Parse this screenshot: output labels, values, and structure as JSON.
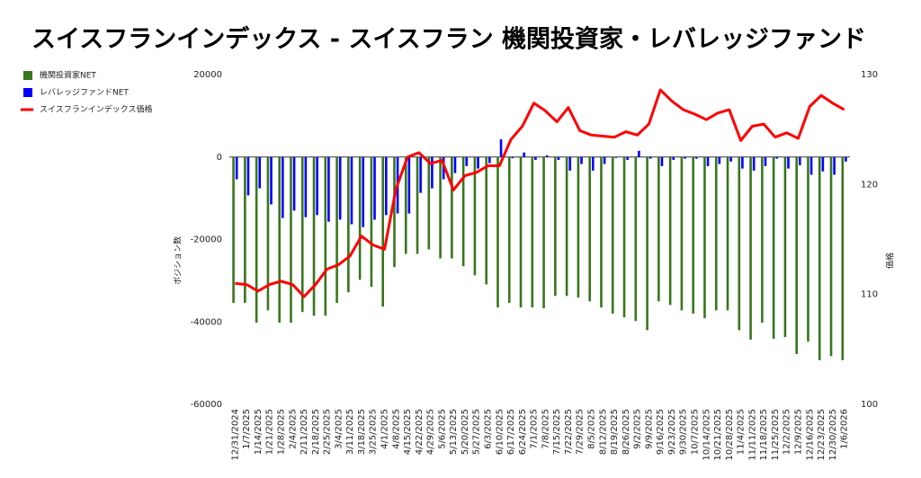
{
  "chart_data": {
    "type": "bar",
    "title": "スイスフランインデックス - スイスフラン 機関投資家・レバレッジファンド",
    "y_label": "ポジション数",
    "y2_label": "価格",
    "categories": [
      "12/31/2024",
      "1/7/2025",
      "1/14/2025",
      "1/21/2025",
      "1/28/2025",
      "2/4/2025",
      "2/11/2025",
      "2/18/2025",
      "2/25/2025",
      "3/4/2025",
      "3/11/2025",
      "3/18/2025",
      "3/25/2025",
      "4/1/2025",
      "4/8/2025",
      "4/15/2025",
      "4/22/2025",
      "4/29/2025",
      "5/6/2025",
      "5/13/2025",
      "5/20/2025",
      "5/27/2025",
      "6/3/2025",
      "6/10/2025",
      "6/17/2025",
      "6/24/2025",
      "7/1/2025",
      "7/8/2025",
      "7/15/2025",
      "7/22/2025",
      "7/29/2025",
      "8/5/2025",
      "8/12/2025",
      "8/19/2025",
      "8/26/2025",
      "9/2/2025",
      "9/9/2025",
      "9/16/2025",
      "9/23/2025",
      "9/30/2025",
      "10/7/2025",
      "10/14/2025",
      "10/21/2025",
      "10/28/2025",
      "11/4/2025",
      "11/11/2025",
      "11/18/2025",
      "11/25/2025",
      "12/2/2025",
      "12/9/2025",
      "12/16/2025",
      "12/23/2025",
      "12/30/2025",
      "1/6/2026"
    ],
    "series": [
      {
        "name": "機関投資家NET",
        "color": "#38761d",
        "type": "bar",
        "values": [
          -35400,
          -35400,
          -40200,
          -37200,
          -40200,
          -40200,
          -37600,
          -38500,
          -38500,
          -35400,
          -32800,
          -29800,
          -31500,
          -36300,
          -26700,
          -23500,
          -23500,
          -22400,
          -24600,
          -24600,
          -26500,
          -28700,
          -30900,
          -36500,
          -35400,
          -36500,
          -36500,
          -36700,
          -33700,
          -33700,
          -34100,
          -35000,
          -36500,
          -38000,
          -38900,
          -39800,
          -42000,
          -35000,
          -35900,
          -37200,
          -38000,
          -39100,
          -37200,
          -37200,
          -42000,
          -44300,
          -40200,
          -44100,
          -43700,
          -47800,
          -44800,
          -49300,
          -48300,
          -49300
        ]
      },
      {
        "name": "レバレッジファンドNET",
        "color": "#0000ff",
        "type": "bar",
        "values": [
          -5400,
          -9300,
          -7600,
          -11500,
          -14800,
          -13000,
          -14600,
          -14100,
          -15700,
          -15200,
          -16300,
          -17000,
          -15200,
          -14100,
          -13700,
          -13700,
          -8700,
          -7600,
          -5400,
          -3900,
          -2200,
          -2800,
          -1500,
          4300,
          -300,
          1100,
          -700,
          400,
          -700,
          -3300,
          -1700,
          -3300,
          -1700,
          -200,
          -700,
          1500,
          -400,
          -2200,
          -700,
          -400,
          -400,
          -2200,
          -1700,
          -1100,
          -2800,
          -3300,
          -2200,
          -400,
          -2800,
          -2000,
          -4300,
          -3500,
          -4300,
          -1100
        ]
      },
      {
        "name": "スイスフランインデックス価格",
        "color": "#ff0000",
        "type": "line",
        "axis": "y2",
        "values": [
          111.0,
          110.9,
          110.3,
          110.9,
          111.2,
          110.9,
          109.8,
          110.9,
          112.3,
          112.7,
          113.5,
          115.3,
          114.5,
          114.1,
          119.6,
          122.5,
          122.9,
          121.9,
          122.2,
          119.5,
          120.8,
          121.1,
          121.7,
          121.7,
          124.1,
          125.3,
          127.4,
          126.7,
          125.7,
          127.0,
          124.9,
          124.5,
          124.4,
          124.3,
          124.8,
          124.5,
          125.5,
          128.6,
          127.6,
          126.8,
          126.4,
          125.9,
          126.5,
          126.8,
          124.0,
          125.3,
          125.5,
          124.3,
          124.7,
          124.2,
          127.1,
          128.1,
          127.4,
          126.8
        ]
      }
    ],
    "ylim": [
      -60000,
      20000
    ],
    "yticks": [
      -60000,
      -40000,
      -20000,
      0,
      20000
    ],
    "y2lim": [
      100,
      130
    ],
    "y2ticks": [
      100,
      110,
      120,
      130
    ],
    "legend": "left"
  }
}
